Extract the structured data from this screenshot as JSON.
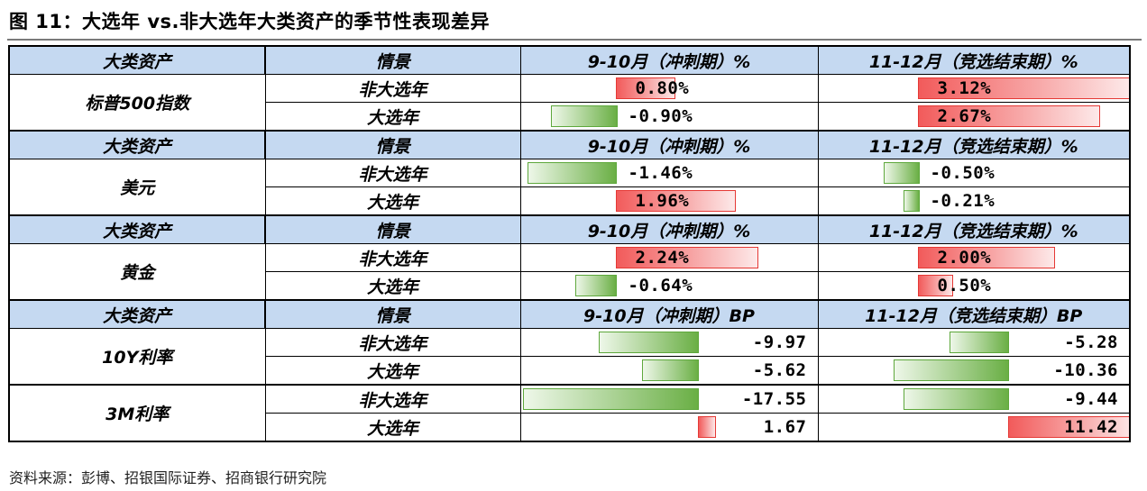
{
  "title": "图 11：大选年 vs.非大选年大类资产的季节性表现差异",
  "source": "资料来源：彭博、招银国际证券、招商银行研究院",
  "colors": {
    "header_bg": "#c5d9f1",
    "positive_bar": "#f25b5b",
    "negative_bar": "#6aaf45"
  },
  "sections": [
    {
      "header": {
        "asset": "大类资产",
        "scenario": "情景",
        "col1": "9-10月（冲刺期）%",
        "col2": "11-12月（竞选结束期）%"
      },
      "asset": "标普500指数",
      "rows": [
        {
          "scenario": "非大选年",
          "v1": 0.8,
          "v1_text": "0.80%",
          "v2": 3.12,
          "v2_text": "3.12%"
        },
        {
          "scenario": "大选年",
          "v1": -0.9,
          "v1_text": "-0.90%",
          "v2": 2.67,
          "v2_text": "2.67%"
        }
      ]
    },
    {
      "header": {
        "asset": "大类资产",
        "scenario": "情景",
        "col1": "9-10月（冲刺期）%",
        "col2": "11-12月（竞选结束期）%"
      },
      "asset": "美元",
      "rows": [
        {
          "scenario": "非大选年",
          "v1": -1.46,
          "v1_text": "-1.46%",
          "v2": -0.5,
          "v2_text": "-0.50%"
        },
        {
          "scenario": "大选年",
          "v1": 1.96,
          "v1_text": "1.96%",
          "v2": -0.21,
          "v2_text": "-0.21%"
        }
      ]
    },
    {
      "header": {
        "asset": "大类资产",
        "scenario": "情景",
        "col1": "9-10月（冲刺期）%",
        "col2": "11-12月（竞选结束期）%"
      },
      "asset": "黄金",
      "rows": [
        {
          "scenario": "非大选年",
          "v1": 2.24,
          "v1_text": "2.24%",
          "v2": 2.0,
          "v2_text": "2.00%"
        },
        {
          "scenario": "大选年",
          "v1": -0.64,
          "v1_text": "-0.64%",
          "v2": 0.5,
          "v2_text": "0.50%"
        }
      ]
    },
    {
      "header": {
        "asset": "大类资产",
        "scenario": "情景",
        "col1": "9-10月（冲刺期）BP",
        "col2": "11-12月（竞选结束期）BP"
      },
      "asset": "10Y利率",
      "rows": [
        {
          "scenario": "非大选年",
          "v1": -9.97,
          "v1_text": "-9.97",
          "v2": -5.28,
          "v2_text": "-5.28"
        },
        {
          "scenario": "大选年",
          "v1": -5.62,
          "v1_text": "-5.62",
          "v2": -10.36,
          "v2_text": "-10.36"
        }
      ]
    },
    {
      "header": null,
      "asset": "3M利率",
      "rows": [
        {
          "scenario": "非大选年",
          "v1": -17.55,
          "v1_text": "-17.55",
          "v2": -9.44,
          "v2_text": "-9.44"
        },
        {
          "scenario": "大选年",
          "v1": 1.67,
          "v1_text": "1.67",
          "v2": 11.42,
          "v2_text": "11.42"
        }
      ]
    }
  ]
}
